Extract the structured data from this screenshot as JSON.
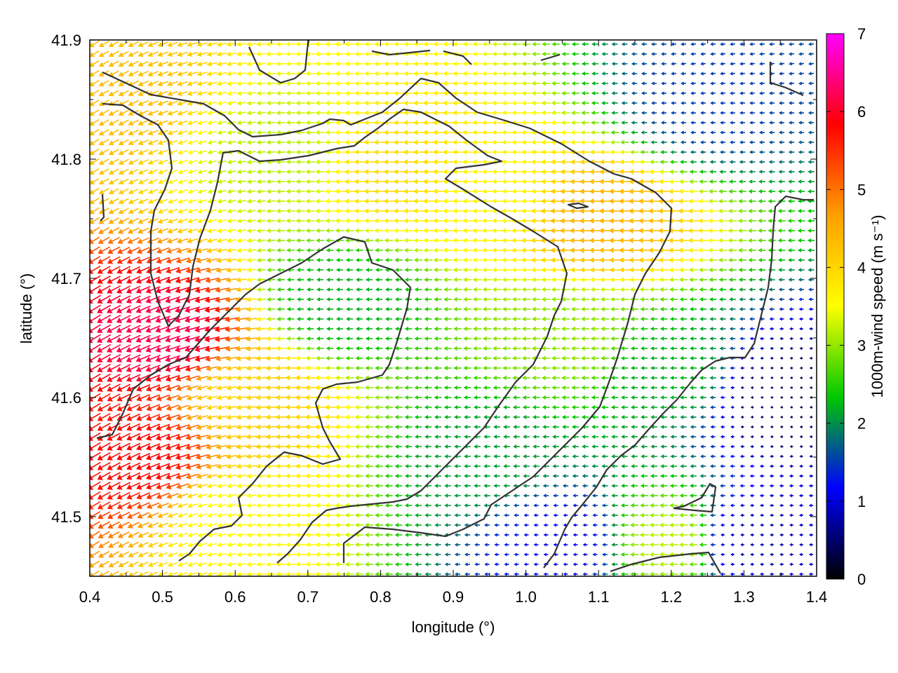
{
  "chart_data": {
    "type": "vector-field",
    "xlabel": "longitude (°)",
    "ylabel": "latitude (°)",
    "xlim": [
      0.4,
      1.4
    ],
    "ylim": [
      41.45,
      41.9
    ],
    "xticks": [
      0.4,
      0.5,
      0.6,
      0.7,
      0.8,
      0.9,
      1.0,
      1.1,
      1.2,
      1.3,
      1.4
    ],
    "xtick_labels": [
      "0.4",
      "0.5",
      "0.6",
      "0.7",
      "0.8",
      "0.9",
      "1.0",
      "1.1",
      "1.2",
      "1.3",
      "1.4"
    ],
    "yticks": [
      41.5,
      41.6,
      41.7,
      41.8,
      41.9
    ],
    "ytick_labels": [
      "41.5",
      "41.6",
      "41.7",
      "41.8",
      "41.9"
    ],
    "colorbar": {
      "label": "1000m-wind speed (m s⁻¹)",
      "range": [
        0,
        7
      ],
      "ticks": [
        0,
        1,
        2,
        3,
        4,
        5,
        6,
        7
      ],
      "tick_labels": [
        "0",
        "1",
        "2",
        "3",
        "4",
        "5",
        "6",
        "7"
      ],
      "colors": [
        "#000000",
        "#0000ff",
        "#00c800",
        "#ffff00",
        "#ffa000",
        "#ff0000",
        "#ff00ff"
      ]
    },
    "speed_field_points": [
      {
        "lon": 0.5,
        "lat": 41.65,
        "speed": 6.2
      },
      {
        "lon": 0.47,
        "lat": 41.55,
        "speed": 5.8
      },
      {
        "lon": 0.42,
        "lat": 41.85,
        "speed": 4.3
      },
      {
        "lon": 0.62,
        "lat": 41.6,
        "speed": 4.0
      },
      {
        "lon": 0.66,
        "lat": 41.8,
        "speed": 3.2
      },
      {
        "lon": 0.75,
        "lat": 41.68,
        "speed": 2.2
      },
      {
        "lon": 0.82,
        "lat": 41.79,
        "speed": 3.9
      },
      {
        "lon": 0.95,
        "lat": 41.77,
        "speed": 3.6
      },
      {
        "lon": 1.1,
        "lat": 41.75,
        "speed": 4.4
      },
      {
        "lon": 1.05,
        "lat": 41.65,
        "speed": 3.0
      },
      {
        "lon": 0.95,
        "lat": 41.55,
        "speed": 2.1
      },
      {
        "lon": 1.05,
        "lat": 41.48,
        "speed": 1.2
      },
      {
        "lon": 1.2,
        "lat": 41.62,
        "speed": 2.2
      },
      {
        "lon": 1.25,
        "lat": 41.85,
        "speed": 1.5
      },
      {
        "lon": 1.35,
        "lat": 41.6,
        "speed": 0.4
      },
      {
        "lon": 1.3,
        "lat": 41.48,
        "speed": 0.8
      },
      {
        "lon": 1.2,
        "lat": 41.48,
        "speed": 3.2
      },
      {
        "lon": 0.6,
        "lat": 41.5,
        "speed": 3.5
      }
    ]
  }
}
